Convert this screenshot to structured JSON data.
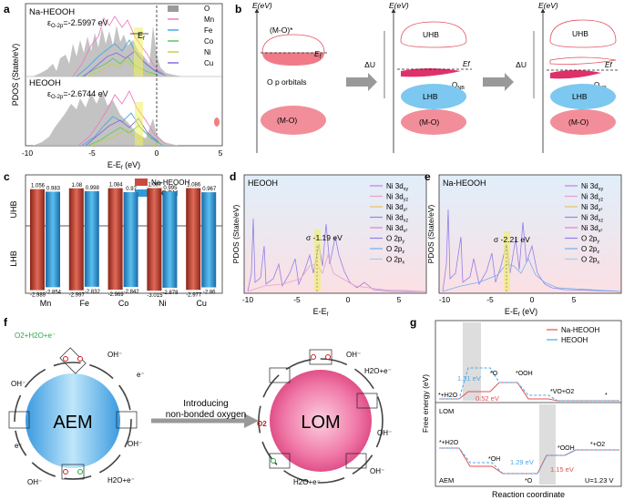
{
  "panel_labels": {
    "a": "a",
    "b": "b",
    "c": "c",
    "d": "d",
    "e": "e",
    "f": "f",
    "g": "g"
  },
  "panel_a": {
    "top_title": "Na-HEOOH",
    "top_epsilon": "ε",
    "top_epsilon_sub": "O-2p",
    "top_epsilon_value": "=-2.5997 eV",
    "bottom_title": "HEOOH",
    "bottom_epsilon": "ε",
    "bottom_epsilon_sub": "O-2p",
    "bottom_epsilon_value": "=-2.6744 eV",
    "ef_label": "E",
    "ef_sub": "f",
    "ylabel": "PDOS (State/eV)",
    "xlabel": "E-E",
    "xlabel_sub": "f",
    "xlabel_unit": " (eV)",
    "xticks": [
      "-10",
      "-5",
      "0",
      "5"
    ],
    "legend": [
      {
        "name": "O",
        "color": "#9a9a9a"
      },
      {
        "name": "Mn",
        "color": "#e87fbf"
      },
      {
        "name": "Fe",
        "color": "#4aa8e8"
      },
      {
        "name": "Co",
        "color": "#5cc85c"
      },
      {
        "name": "Ni",
        "color": "#c8d040"
      },
      {
        "name": "Cu",
        "color": "#8a6cd8"
      }
    ]
  },
  "panel_b": {
    "axis_label": "E(eV)",
    "mo_star": "(M-O)*",
    "ef": "E",
    "ef_sub": "f",
    "o_p_orbitals": "O p orbitals",
    "mo": "(M-O)",
    "uhb": "UHB",
    "lhb": "LHB",
    "delta_u": "ΔU",
    "ef2": "Ef",
    "onb": "O",
    "onb_sub": "NB"
  },
  "panel_c": {
    "legend": [
      {
        "name": "Na-HEOOH",
        "color": "#c84a40"
      },
      {
        "name": "HEOOH",
        "color": "#2e9ad8"
      }
    ],
    "uhb_label": "UHB",
    "lhb_label": "LHB",
    "categories": [
      "Mn",
      "Fe",
      "Co",
      "Ni",
      "Cu"
    ]
  },
  "chart_data": {
    "type": "bar",
    "categories": [
      "Mn",
      "Fe",
      "Co",
      "Ni",
      "Cu"
    ],
    "series": [
      {
        "name": "Na-HEOOH",
        "uhb": [
          1.056,
          1.08,
          1.084,
          1.087,
          1.086
        ],
        "lhb": [
          -2.989,
          -2.997,
          -2.969,
          -3.015,
          -2.977
        ]
      },
      {
        "name": "HEOOH",
        "uhb": [
          0.983,
          0.998,
          0.97,
          0.995,
          0.967
        ],
        "lhb": [
          -2.854,
          -2.832,
          -2.842,
          -2.878,
          -2.86
        ]
      }
    ],
    "uhb_labels": [
      [
        "1.056",
        "0.983"
      ],
      [
        "1.08",
        "0.998"
      ],
      [
        "1.084",
        "0.97"
      ],
      [
        "1.087",
        "0.995"
      ],
      [
        "1.086",
        "0.967"
      ]
    ],
    "lhb_labels": [
      [
        "-2.989",
        "-2.854"
      ],
      [
        "-2.997",
        "-2.832"
      ],
      [
        "-2.969",
        "-2.842"
      ],
      [
        "-3.015",
        "-2.878"
      ],
      [
        "-2.977",
        "-2.86"
      ]
    ]
  },
  "panel_d": {
    "title": "HEOOH",
    "sigma": "σ -1.19 eV",
    "ylabel": "PDOS (State/eV)",
    "xlabel": "E-E",
    "xlabel_sub": "f",
    "xticks": [
      "-10",
      "-5",
      "0",
      "5"
    ],
    "legend": [
      {
        "base": "Ni 3d",
        "sub": "xy",
        "color": "#c080e0"
      },
      {
        "base": "Ni 3d",
        "sub": "yz",
        "color": "#e8a0c8"
      },
      {
        "base": "Ni 3d",
        "sub": "z²",
        "color": "#e8c060"
      },
      {
        "base": "Ni 3d",
        "sub": "xz",
        "color": "#8090e0"
      },
      {
        "base": "Ni 3d",
        "sub": "x²",
        "color": "#e080d0"
      },
      {
        "base": "O 2p",
        "sub": "y",
        "color": "#9080e8"
      },
      {
        "base": "O 2p",
        "sub": "z",
        "color": "#70b0f0"
      },
      {
        "base": "O 2p",
        "sub": "x",
        "color": "#a0d0f0"
      }
    ]
  },
  "panel_e": {
    "title": "Na-HEOOH",
    "sigma": "σ  -2.21 eV",
    "ylabel": "PDOS (State/eV)",
    "xlabel": "E-E",
    "xlabel_sub": "f",
    "xlabel_unit": " (eV)",
    "xticks": [
      "-10",
      "-5",
      "0",
      "5"
    ],
    "legend": [
      {
        "base": "Ni 3d",
        "sub": "xy",
        "color": "#c080e0"
      },
      {
        "base": "Ni 3d",
        "sub": "yz",
        "color": "#e8a0c8"
      },
      {
        "base": "Ni 3d",
        "sub": "z²",
        "color": "#e8c060"
      },
      {
        "base": "Ni 3d",
        "sub": "xz",
        "color": "#8090e0"
      },
      {
        "base": "Ni 3d",
        "sub": "x²",
        "color": "#e080d0"
      },
      {
        "base": "O 2p",
        "sub": "y",
        "color": "#9080e8"
      },
      {
        "base": "O 2p",
        "sub": "z",
        "color": "#70b0f0"
      },
      {
        "base": "O 2p",
        "sub": "x",
        "color": "#a0d0f0"
      }
    ]
  },
  "panel_f": {
    "aem": "AEM",
    "lom": "LOM",
    "arrow_text_1": "Introducing",
    "arrow_text_2": "non-bonded oxygen",
    "o2_h2o": "O2+H2O+e⁻",
    "h2o_e_1": "H2O+e⁻",
    "h2o_e_2": "H2O+e⁻",
    "h2o_e_3": "H2O+e⁻",
    "oh": "OH⁻",
    "e_minus": "e⁻",
    "o2": "O2"
  },
  "panel_g": {
    "legend": [
      {
        "name": "Na-HEOOH",
        "color": "#e85050"
      },
      {
        "name": "HEOOH",
        "color": "#4aa8e8"
      }
    ],
    "lom_tag": "LOM",
    "aem_tag": "AEM",
    "ylabel": "Free energy (eV)",
    "xlabel": "Reaction coordinate",
    "u_label": "U=1.23 V",
    "lom_states": [
      "*+H2O",
      "*O",
      "*OOH",
      "*VO+O2",
      "*"
    ],
    "aem_states": [
      "*+H2O",
      "*OH",
      "*O",
      "*OOH",
      "*+O2"
    ],
    "lom_values": {
      "heoo_top": "1.31 eV",
      "na_top": "0.52 eV"
    },
    "aem_values": {
      "heoo": "1.29 eV",
      "na": "1.15 eV"
    }
  }
}
